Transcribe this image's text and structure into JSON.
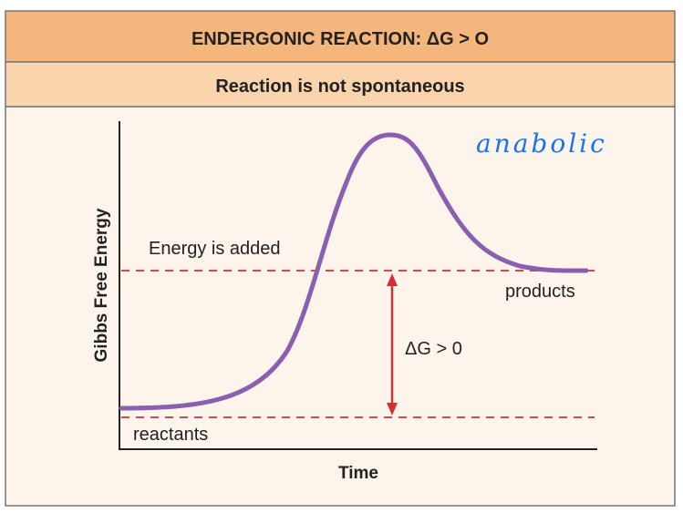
{
  "title": "ENDERGONIC REACTION: ΔG > O",
  "subtitle": "Reaction is not spontaneous",
  "y_axis_label": "Gibbs Free Energy",
  "x_axis_label": "Time",
  "labels": {
    "energy_added": "Energy is added",
    "products": "products",
    "reactants": "reactants",
    "delta_g": "ΔG > 0"
  },
  "annotation": "anabolic",
  "colors": {
    "header": "#f4b67c",
    "subheader": "#f9d4ad",
    "panel": "#fdf4ec",
    "curve": "#8a5fb0",
    "dashed": "#d9464a",
    "arrow": "#d32f35",
    "annotation": "#1a73e8"
  }
}
